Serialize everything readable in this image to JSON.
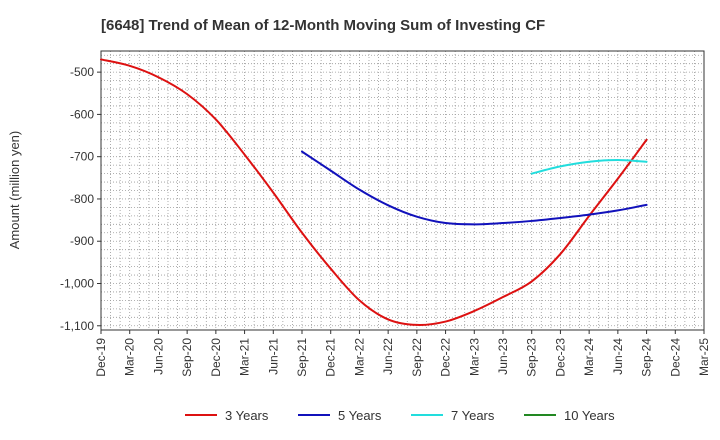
{
  "chart_data": {
    "type": "line",
    "title": "[6648]  Trend of Mean of 12-Month Moving Sum of Investing CF",
    "xlabel": "",
    "ylabel": "Amount (million yen)",
    "x_ticks": [
      "Dec-19",
      "Mar-20",
      "Jun-20",
      "Sep-20",
      "Dec-20",
      "Mar-21",
      "Jun-21",
      "Sep-21",
      "Dec-21",
      "Mar-22",
      "Jun-22",
      "Sep-22",
      "Dec-22",
      "Mar-23",
      "Jun-23",
      "Sep-23",
      "Dec-23",
      "Mar-24",
      "Jun-24",
      "Sep-24",
      "Dec-24",
      "Mar-25"
    ],
    "y_ticks": [
      -500,
      -600,
      -700,
      -800,
      -900,
      -1000,
      -1100
    ],
    "y_tick_labels": [
      "-500",
      "-600",
      "-700",
      "-800",
      "-900",
      "-1,000",
      "-1,100"
    ],
    "ylim": [
      -1110,
      -450
    ],
    "xlim_quarters": [
      0,
      21
    ],
    "grid": true,
    "legend_position": "bottom",
    "series": [
      {
        "name": "3 Years",
        "color": "#dd1111",
        "x": [
          "Dec-19",
          "Mar-20",
          "Jun-20",
          "Sep-20",
          "Dec-20",
          "Mar-21",
          "Jun-21",
          "Sep-21",
          "Dec-21",
          "Mar-22",
          "Jun-22",
          "Sep-22",
          "Dec-22",
          "Mar-23",
          "Jun-23",
          "Sep-23",
          "Dec-23",
          "Mar-24",
          "Jun-24",
          "Sep-24"
        ],
        "values": [
          -470,
          -485,
          -512,
          -552,
          -612,
          -695,
          -785,
          -880,
          -965,
          -1040,
          -1085,
          -1098,
          -1090,
          -1065,
          -1032,
          -995,
          -930,
          -840,
          -752,
          -660
        ]
      },
      {
        "name": "5 Years",
        "color": "#1111bb",
        "x": [
          "Sep-21",
          "Dec-21",
          "Mar-22",
          "Jun-22",
          "Sep-22",
          "Dec-22",
          "Mar-23",
          "Jun-23",
          "Sep-23",
          "Dec-23",
          "Mar-24",
          "Jun-24",
          "Sep-24"
        ],
        "values": [
          -688,
          -733,
          -778,
          -815,
          -842,
          -857,
          -860,
          -857,
          -852,
          -845,
          -837,
          -827,
          -814
        ]
      },
      {
        "name": "7 Years",
        "color": "#22dddd",
        "x": [
          "Sep-23",
          "Dec-23",
          "Mar-24",
          "Jun-24",
          "Sep-24"
        ],
        "values": [
          -740,
          -723,
          -712,
          -708,
          -712
        ]
      },
      {
        "name": "10 Years",
        "color": "#228822",
        "x": [],
        "values": []
      }
    ]
  }
}
